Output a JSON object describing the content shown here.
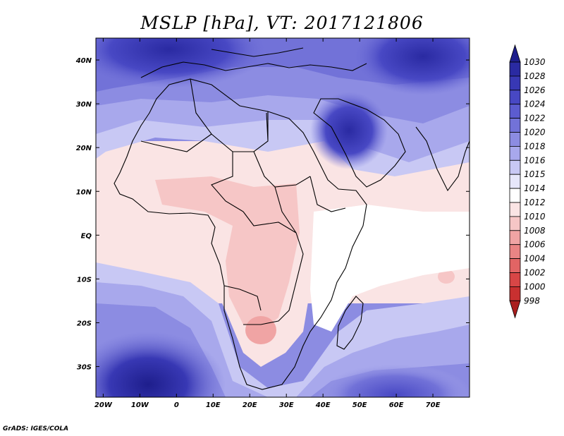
{
  "title": "MSLP [hPa], VT: 2017121806",
  "credit": "GrADS: IGES/COLA",
  "map": {
    "type": "filled-contour-map",
    "variable": "MSLP",
    "units": "hPa",
    "valid_time": "2017121806",
    "lon_range": [
      -22,
      80
    ],
    "lat_range": [
      -37,
      45
    ],
    "lat_ticks": [
      {
        "value": 40,
        "label": "40N"
      },
      {
        "value": 30,
        "label": "30N"
      },
      {
        "value": 20,
        "label": "20N"
      },
      {
        "value": 10,
        "label": "10N"
      },
      {
        "value": 0,
        "label": "EQ"
      },
      {
        "value": -10,
        "label": "10S"
      },
      {
        "value": -20,
        "label": "20S"
      },
      {
        "value": -30,
        "label": "30S"
      }
    ],
    "lon_ticks": [
      {
        "value": -20,
        "label": "20W"
      },
      {
        "value": -10,
        "label": "10W"
      },
      {
        "value": 0,
        "label": "0"
      },
      {
        "value": 10,
        "label": "10E"
      },
      {
        "value": 20,
        "label": "20E"
      },
      {
        "value": 30,
        "label": "30E"
      },
      {
        "value": 40,
        "label": "40E"
      },
      {
        "value": 50,
        "label": "50E"
      },
      {
        "value": 60,
        "label": "60E"
      },
      {
        "value": 70,
        "label": "70E"
      }
    ]
  },
  "colorbar": {
    "levels": [
      "1030",
      "1028",
      "1026",
      "1024",
      "1022",
      "1020",
      "1018",
      "1016",
      "1015",
      "1014",
      "1012",
      "1010",
      "1008",
      "1006",
      "1004",
      "1002",
      "1000",
      "998"
    ],
    "colors": [
      "#1e1e8c",
      "#2a2aa2",
      "#3838b4",
      "#4848c4",
      "#5c5cd0",
      "#7272d8",
      "#8c8ce2",
      "#a8a8ec",
      "#c8c8f4",
      "#e6e6fa",
      "#ffffff",
      "#fae4e4",
      "#f6c6c6",
      "#f0a4a4",
      "#ea8484",
      "#e26464",
      "#d84646",
      "#c83030",
      "#aa1e1e"
    ]
  },
  "pressure_regions": {
    "low": "#f6c6c6",
    "mid": "#fae4e4",
    "high": "#c8c8f4",
    "higher": "#8c8ce2",
    "highest": "#3838b4"
  }
}
